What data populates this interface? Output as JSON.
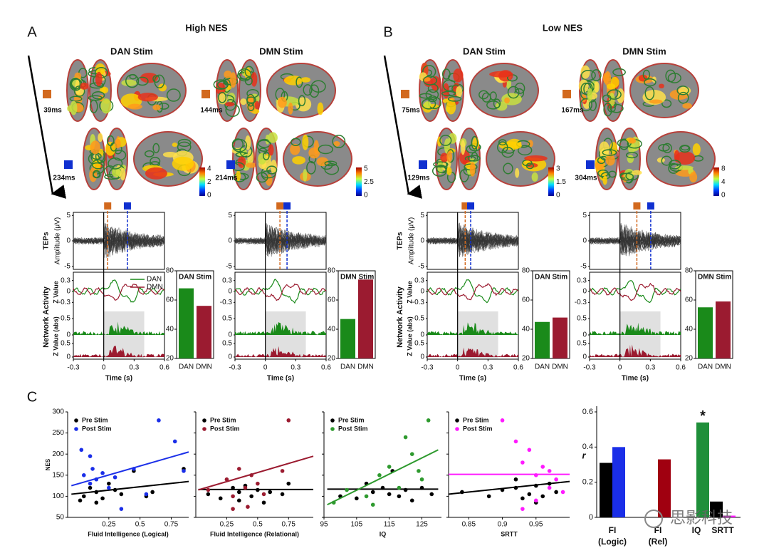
{
  "panels": [
    {
      "label": "A",
      "title": "High NES",
      "stims": [
        {
          "title": "DAN Stim",
          "early": "39ms",
          "late": "234ms",
          "colorbar": [
            0,
            2,
            4
          ],
          "bar": {
            "categories": [
              "DAN",
              "DMN"
            ],
            "values": [
              68,
              56
            ],
            "colors": [
              "#1a8a1a",
              "#9b1b30"
            ],
            "ylim": [
              20,
              80
            ],
            "yticks": [
              20,
              40,
              60,
              80
            ]
          }
        },
        {
          "title": "DMN Stim",
          "early": "144ms",
          "late": "214ms",
          "colorbar": [
            0,
            2.5,
            5
          ],
          "bar": {
            "categories": [
              "DAN",
              "DMN"
            ],
            "values": [
              47,
              74
            ],
            "colors": [
              "#1a8a1a",
              "#9b1b30"
            ],
            "ylim": [
              20,
              80
            ],
            "yticks": [
              20,
              40,
              60,
              80
            ]
          }
        }
      ]
    },
    {
      "label": "B",
      "title": "Low NES",
      "stims": [
        {
          "title": "DAN Stim",
          "early": "75ms",
          "late": "129ms",
          "colorbar": [
            0,
            1.5,
            3
          ],
          "bar": {
            "categories": [
              "DAN",
              "DMN"
            ],
            "values": [
              45,
              48
            ],
            "colors": [
              "#1a8a1a",
              "#9b1b30"
            ],
            "ylim": [
              20,
              80
            ],
            "yticks": [
              20,
              40,
              60,
              80
            ]
          }
        },
        {
          "title": "DMN Stim",
          "early": "167ms",
          "late": "304ms",
          "colorbar": [
            0,
            4,
            8
          ],
          "bar": {
            "categories": [
              "DAN",
              "DMN"
            ],
            "values": [
              55,
              59
            ],
            "colors": [
              "#1a8a1a",
              "#9b1b30"
            ],
            "ylim": [
              20,
              80
            ],
            "yticks": [
              20,
              40,
              60,
              80
            ]
          }
        }
      ]
    }
  ],
  "erp": {
    "tep_title": "TEPs",
    "tep_ylabel": "Amplitude (μV)",
    "tep_ylim": [
      -5.6,
      5.6
    ],
    "tep_yticks": [
      5,
      0,
      -5
    ],
    "net_title": "Network Activity",
    "z_label": "Z Value",
    "z_yticks": [
      0.3,
      0,
      -0.3
    ],
    "zabs_label": "Z Value (abs)",
    "zabs_yticks": [
      0.5,
      0
    ],
    "xlim": [
      -0.3,
      0.6
    ],
    "xticks": [
      -0.3,
      0,
      0.3,
      0.6
    ],
    "xlabel": "Time (s)",
    "legend": [
      {
        "name": "DAN",
        "color": "#1a8a1a"
      },
      {
        "name": "DMN",
        "color": "#9b1b30"
      }
    ]
  },
  "panel_c": {
    "label": "C",
    "ylabel": "NES",
    "ylim": [
      50,
      300
    ],
    "yticks": [
      50,
      100,
      150,
      200,
      250,
      300
    ],
    "scatters": [
      {
        "xlabel": "Fluid Intelligence (Logical)",
        "xlim": [
          -0.08,
          0.89
        ],
        "xticks": [
          0.25,
          0.5,
          0.75
        ],
        "series": [
          {
            "name": "Pre Stim",
            "color": "#000000",
            "points": [
              [
                0.02,
                90
              ],
              [
                0.05,
                100
              ],
              [
                0.1,
                120
              ],
              [
                0.15,
                110
              ],
              [
                0.2,
                95
              ],
              [
                0.25,
                130
              ],
              [
                0.3,
                115
              ],
              [
                0.35,
                105
              ],
              [
                0.45,
                160
              ],
              [
                0.55,
                100
              ],
              [
                0.6,
                110
              ],
              [
                0.85,
                165
              ],
              [
                0.15,
                85
              ]
            ],
            "fit": [
              [
                -0.05,
                105
              ],
              [
                0.89,
                135
              ]
            ]
          },
          {
            "name": "Post Stim",
            "color": "#1a2ee8",
            "points": [
              [
                0.03,
                210
              ],
              [
                0.05,
                150
              ],
              [
                0.1,
                130
              ],
              [
                0.12,
                165
              ],
              [
                0.15,
                140
              ],
              [
                0.2,
                155
              ],
              [
                0.25,
                120
              ],
              [
                0.3,
                145
              ],
              [
                0.35,
                70
              ],
              [
                0.45,
                165
              ],
              [
                0.55,
                105
              ],
              [
                0.65,
                280
              ],
              [
                0.78,
                230
              ],
              [
                0.85,
                160
              ],
              [
                0.1,
                195
              ]
            ],
            "fit": [
              [
                -0.05,
                125
              ],
              [
                0.89,
                205
              ]
            ]
          }
        ]
      },
      {
        "xlabel": "Fluid Intelligence (Relational)",
        "xlim": [
          0,
          0.95
        ],
        "xticks": [
          0.25,
          0.5,
          0.75
        ],
        "series": [
          {
            "name": "Pre Stim",
            "color": "#000000",
            "points": [
              [
                0.1,
                105
              ],
              [
                0.2,
                95
              ],
              [
                0.3,
                120
              ],
              [
                0.35,
                110
              ],
              [
                0.4,
                125
              ],
              [
                0.45,
                100
              ],
              [
                0.5,
                115
              ],
              [
                0.55,
                85
              ],
              [
                0.6,
                110
              ],
              [
                0.7,
                105
              ],
              [
                0.75,
                130
              ],
              [
                0.35,
                90
              ]
            ],
            "fit": [
              [
                0.02,
                116
              ],
              [
                0.95,
                116
              ]
            ]
          },
          {
            "name": "Post Stim",
            "color": "#9b1b30",
            "points": [
              [
                0.1,
                115
              ],
              [
                0.25,
                140
              ],
              [
                0.3,
                100
              ],
              [
                0.35,
                165
              ],
              [
                0.4,
                120
              ],
              [
                0.42,
                75
              ],
              [
                0.45,
                150
              ],
              [
                0.5,
                130
              ],
              [
                0.55,
                105
              ],
              [
                0.7,
                160
              ],
              [
                0.75,
                280
              ],
              [
                0.3,
                70
              ]
            ],
            "fit": [
              [
                0.02,
                115
              ],
              [
                0.95,
                195
              ]
            ]
          }
        ]
      },
      {
        "xlabel": "IQ",
        "xlim": [
          95,
          131
        ],
        "xticks": [
          95,
          105,
          115,
          125
        ],
        "series": [
          {
            "name": "Pre Stim",
            "color": "#000000",
            "points": [
              [
                100,
                100
              ],
              [
                105,
                95
              ],
              [
                110,
                110
              ],
              [
                113,
                120
              ],
              [
                115,
                105
              ],
              [
                118,
                100
              ],
              [
                120,
                115
              ],
              [
                122,
                90
              ],
              [
                125,
                120
              ],
              [
                128,
                105
              ],
              [
                108,
                130
              ],
              [
                116,
                160
              ]
            ],
            "fit": [
              [
                96,
                117
              ],
              [
                130,
                117
              ]
            ]
          },
          {
            "name": "Post Stim",
            "color": "#2e9a2e",
            "points": [
              [
                98,
                85
              ],
              [
                102,
                115
              ],
              [
                108,
                100
              ],
              [
                112,
                150
              ],
              [
                115,
                170
              ],
              [
                118,
                120
              ],
              [
                120,
                240
              ],
              [
                122,
                200
              ],
              [
                124,
                160
              ],
              [
                125,
                140
              ],
              [
                127,
                280
              ],
              [
                110,
                80
              ]
            ],
            "fit": [
              [
                96,
                80
              ],
              [
                130,
                210
              ]
            ]
          }
        ]
      },
      {
        "xlabel": "SRTT",
        "xlim": [
          0.82,
          1.0
        ],
        "xticks": [
          0.85,
          0.9,
          0.95
        ],
        "series": [
          {
            "name": "Pre Stim",
            "color": "#000000",
            "points": [
              [
                0.84,
                110
              ],
              [
                0.88,
                100
              ],
              [
                0.9,
                115
              ],
              [
                0.92,
                120
              ],
              [
                0.93,
                95
              ],
              [
                0.94,
                105
              ],
              [
                0.95,
                125
              ],
              [
                0.96,
                100
              ],
              [
                0.97,
                130
              ],
              [
                0.98,
                110
              ],
              [
                0.95,
                85
              ],
              [
                0.92,
                140
              ]
            ],
            "fit": [
              [
                0.82,
                105
              ],
              [
                1.0,
                135
              ]
            ]
          },
          {
            "name": "Post Stim",
            "color": "#ff1aff",
            "points": [
              [
                0.9,
                280
              ],
              [
                0.92,
                230
              ],
              [
                0.93,
                180
              ],
              [
                0.94,
                210
              ],
              [
                0.95,
                150
              ],
              [
                0.96,
                170
              ],
              [
                0.97,
                160
              ],
              [
                0.98,
                140
              ],
              [
                0.93,
                70
              ],
              [
                0.95,
                90
              ],
              [
                0.97,
                120
              ],
              [
                0.99,
                110
              ]
            ],
            "fit": [
              [
                0.82,
                152
              ],
              [
                1.0,
                152
              ]
            ]
          }
        ]
      }
    ],
    "rbar": {
      "ylabel": "r",
      "ylim": [
        0,
        0.6
      ],
      "yticks": [
        0,
        0.2,
        0.4,
        0.6
      ],
      "categories": [
        [
          "FI",
          "(Logic)"
        ],
        [
          "FI",
          "(Rel)"
        ],
        [
          "IQ"
        ],
        [
          "SRTT"
        ]
      ],
      "pre": {
        "color": "#000000",
        "values": [
          0.31,
          0,
          0,
          0.09
        ]
      },
      "post": {
        "colors": [
          "#1a2ee8",
          "#a00010",
          "#1f8f3a",
          "#ff1aff"
        ],
        "values": [
          0.4,
          0.33,
          0.54,
          0.01
        ]
      },
      "annotation": {
        "text": "*",
        "category": 2
      }
    }
  },
  "watermark": "思影科技"
}
